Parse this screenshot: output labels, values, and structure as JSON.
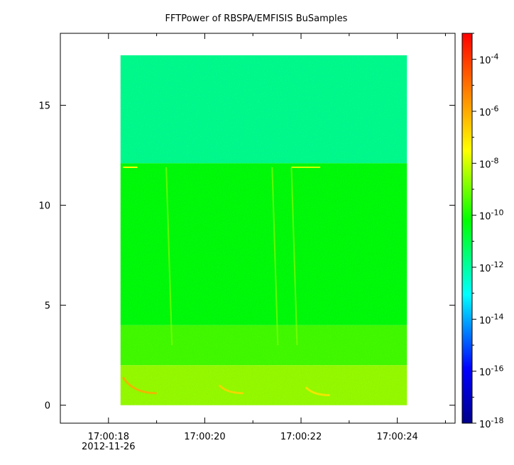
{
  "chart_data": {
    "type": "heatmap",
    "title": "FFTPower of RBSPA/EMFISIS  BuSamples",
    "xlabel": "",
    "ylabel": "",
    "x_axis": {
      "kind": "time",
      "date_label": "2012-11-26",
      "range": [
        "17:00:17.0",
        "17:00:25.2"
      ],
      "ticks": [
        {
          "value": "17:00:18",
          "label": "17:00:18"
        },
        {
          "value": "17:00:20",
          "label": "17:00:20"
        },
        {
          "value": "17:00:22",
          "label": "17:00:22"
        },
        {
          "value": "17:00:24",
          "label": "17:00:24"
        }
      ],
      "minor_ticks": [
        "17:00:17",
        "17:00:19",
        "17:00:21",
        "17:00:23",
        "17:00:25"
      ]
    },
    "y_axis": {
      "range": [
        -0.9,
        18.6
      ],
      "ticks": [
        0,
        5,
        10,
        15
      ],
      "tick_labels": [
        "0",
        "5",
        "10",
        "15"
      ]
    },
    "colorbar": {
      "scale": "log",
      "range": [
        1e-18,
        0.001
      ],
      "ticks": [
        {
          "mantissa": "10",
          "exponent": "-18"
        },
        {
          "mantissa": "10",
          "exponent": "-16"
        },
        {
          "mantissa": "10",
          "exponent": "-14"
        },
        {
          "mantissa": "10",
          "exponent": "-12"
        },
        {
          "mantissa": "10",
          "exponent": "-10"
        },
        {
          "mantissa": "10",
          "exponent": "-8"
        },
        {
          "mantissa": "10",
          "exponent": "-6"
        },
        {
          "mantissa": "10",
          "exponent": "-4"
        }
      ],
      "colormap": [
        "#00008b",
        "#0000ff",
        "#00ffff",
        "#00ff00",
        "#ffff00",
        "#ff8000",
        "#ff0000"
      ]
    },
    "data_extent": {
      "x": [
        "17:00:18.25",
        "17:00:24.2"
      ],
      "y": [
        0,
        17.5
      ]
    },
    "frequency_bands": [
      {
        "y_from": 12.1,
        "y_to": 17.5,
        "log10_power": -11.8
      },
      {
        "y_from": 4,
        "y_to": 12.1,
        "log10_power": -10.3
      },
      {
        "y_from": 2,
        "y_to": 4,
        "log10_power": -9.5
      },
      {
        "y_from": 0,
        "y_to": 2,
        "log10_power": -8.6
      }
    ],
    "features": [
      {
        "kind": "line",
        "y": 11.9,
        "x_from": "17:00:18.3",
        "x_to": "17:00:18.6",
        "log10_power": -7.5
      },
      {
        "kind": "line",
        "y": 11.9,
        "x_from": "17:00:21.8",
        "x_to": "17:00:22.4",
        "log10_power": -8
      },
      {
        "kind": "streak",
        "x": "17:00:19.2",
        "log10_power": -8.8
      },
      {
        "kind": "streak",
        "x": "17:00:21.4",
        "log10_power": -8.8
      },
      {
        "kind": "streak",
        "x": "17:00:21.8",
        "log10_power": -8.8
      },
      {
        "kind": "dispersion",
        "x_from": "17:00:18.3",
        "x_to": "17:00:19.0",
        "y_from": 1.4,
        "y_to": 0.6,
        "log10_power": -6
      },
      {
        "kind": "dispersion",
        "x_from": "17:00:20.3",
        "x_to": "17:00:20.8",
        "y_from": 1.0,
        "y_to": 0.6,
        "log10_power": -6.7
      },
      {
        "kind": "dispersion",
        "x_from": "17:00:22.1",
        "x_to": "17:00:22.6",
        "y_from": 0.9,
        "y_to": 0.5,
        "log10_power": -7
      }
    ],
    "grid": false,
    "legend": "colorbar-right"
  }
}
